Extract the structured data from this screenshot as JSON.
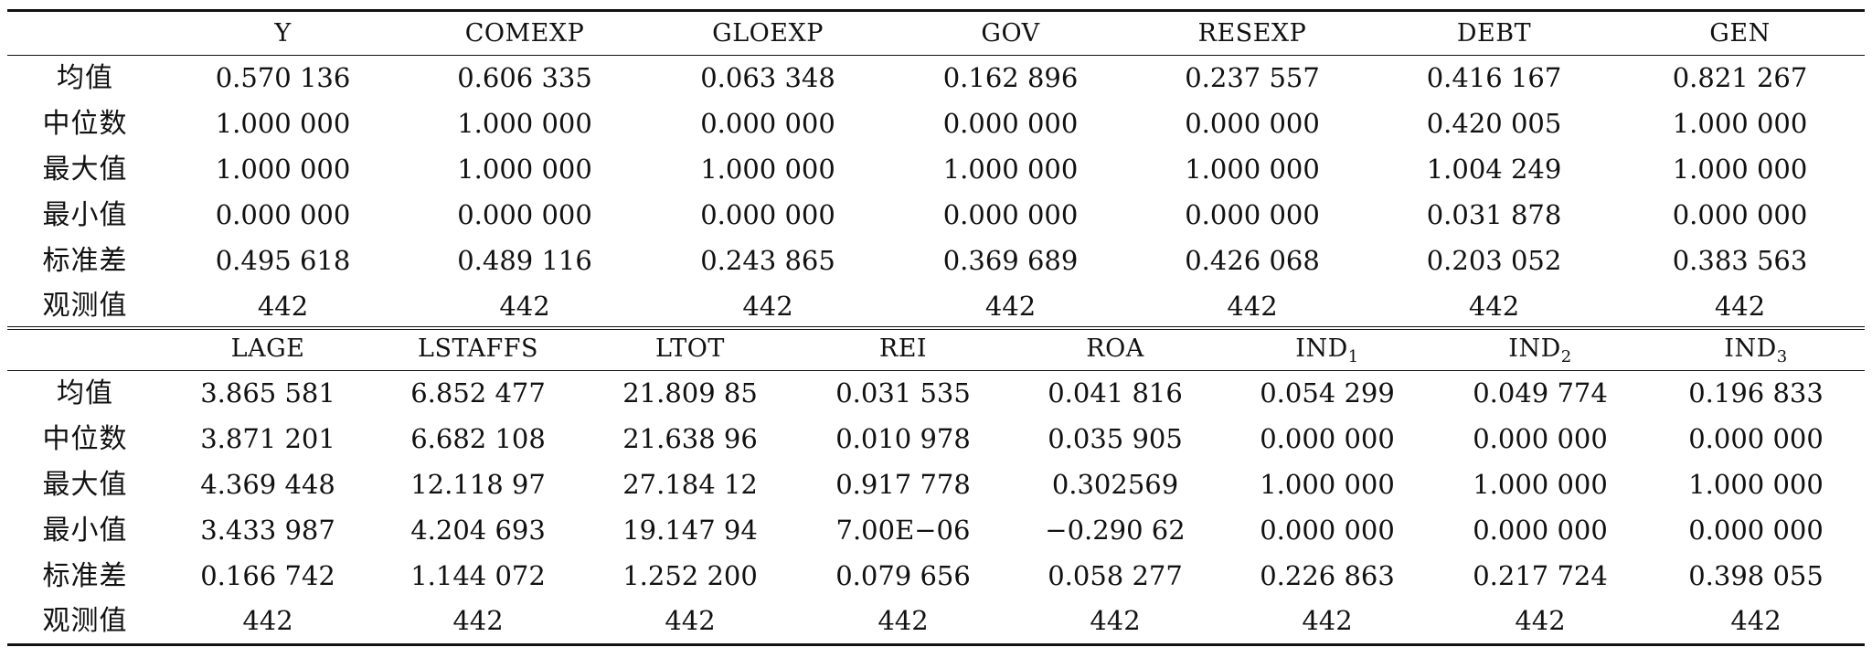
{
  "top_table": {
    "headers": [
      "Y",
      "COMEXP",
      "GLOEXP",
      "GOV",
      "RESEXP",
      "DEBT",
      "GEN"
    ],
    "rows": [
      {
        "label": "均值",
        "cells": [
          "0.570 136",
          "0.606 335",
          "0.063 348",
          "0.162 896",
          "0.237 557",
          "0.416 167",
          "0.821 267"
        ]
      },
      {
        "label": "中位数",
        "cells": [
          "1.000 000",
          "1.000 000",
          "0.000 000",
          "0.000 000",
          "0.000 000",
          "0.420 005",
          "1.000 000"
        ]
      },
      {
        "label": "最大值",
        "cells": [
          "1.000 000",
          "1.000 000",
          "1.000 000",
          "1.000 000",
          "1.000 000",
          "1.004 249",
          "1.000 000"
        ]
      },
      {
        "label": "最小值",
        "cells": [
          "0.000 000",
          "0.000 000",
          "0.000 000",
          "0.000 000",
          "0.000 000",
          "0.031 878",
          "0.000 000"
        ]
      },
      {
        "label": "标准差",
        "cells": [
          "0.495 618",
          "0.489 116",
          "0.243 865",
          "0.369 689",
          "0.426 068",
          "0.203 052",
          "0.383 563"
        ]
      },
      {
        "label": "观测值",
        "cells": [
          "442",
          "442",
          "442",
          "442",
          "442",
          "442",
          "442"
        ]
      }
    ]
  },
  "bottom_table": {
    "headers": [
      {
        "base": "LAGE",
        "sub": ""
      },
      {
        "base": "LSTAFFS",
        "sub": ""
      },
      {
        "base": "LTOT",
        "sub": ""
      },
      {
        "base": "REI",
        "sub": ""
      },
      {
        "base": "ROA",
        "sub": ""
      },
      {
        "base": "IND",
        "sub": "1"
      },
      {
        "base": "IND",
        "sub": "2"
      },
      {
        "base": "IND",
        "sub": "3"
      }
    ],
    "rows": [
      {
        "label": "均值",
        "cells": [
          "3.865 581",
          "6.852 477",
          "21.809 85",
          "0.031 535",
          "0.041 816",
          "0.054 299",
          "0.049 774",
          "0.196 833"
        ]
      },
      {
        "label": "中位数",
        "cells": [
          "3.871 201",
          "6.682 108",
          "21.638 96",
          "0.010 978",
          "0.035 905",
          "0.000 000",
          "0.000 000",
          "0.000 000"
        ]
      },
      {
        "label": "最大值",
        "cells": [
          "4.369 448",
          "12.118 97",
          "27.184 12",
          "0.917 778",
          "0.302569",
          "1.000 000",
          "1.000 000",
          "1.000 000"
        ]
      },
      {
        "label": "最小值",
        "cells": [
          "3.433 987",
          "4.204 693",
          "19.147 94",
          "7.00E−06",
          "−0.290 62",
          "0.000 000",
          "0.000 000",
          "0.000 000"
        ]
      },
      {
        "label": "标准差",
        "cells": [
          "0.166 742",
          "1.144 072",
          "1.252 200",
          "0.079 656",
          "0.058 277",
          "0.226 863",
          "0.217 724",
          "0.398 055"
        ]
      },
      {
        "label": "观测值",
        "cells": [
          "442",
          "442",
          "442",
          "442",
          "442",
          "442",
          "442",
          "442"
        ]
      }
    ]
  }
}
